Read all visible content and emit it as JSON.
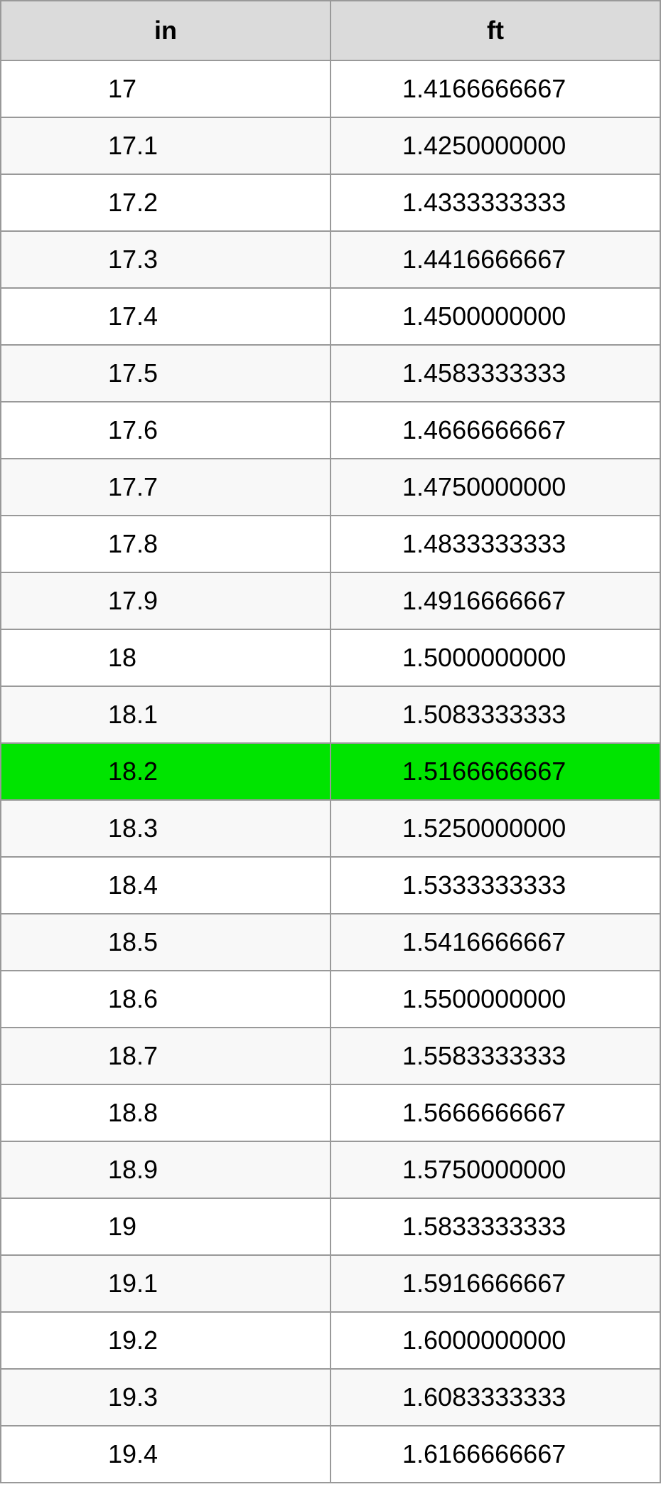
{
  "conversion_table": {
    "type": "table",
    "columns": [
      "in",
      "ft"
    ],
    "header_bg": "#dbdbdb",
    "border_color": "#999999",
    "odd_row_bg": "#ffffff",
    "even_row_bg": "#f8f8f8",
    "highlight_bg": "#00e400",
    "text_color": "#000000",
    "font_size": 36,
    "highlight_index": 12,
    "rows": [
      {
        "in": "17",
        "ft": "1.4166666667"
      },
      {
        "in": "17.1",
        "ft": "1.4250000000"
      },
      {
        "in": "17.2",
        "ft": "1.4333333333"
      },
      {
        "in": "17.3",
        "ft": "1.4416666667"
      },
      {
        "in": "17.4",
        "ft": "1.4500000000"
      },
      {
        "in": "17.5",
        "ft": "1.4583333333"
      },
      {
        "in": "17.6",
        "ft": "1.4666666667"
      },
      {
        "in": "17.7",
        "ft": "1.4750000000"
      },
      {
        "in": "17.8",
        "ft": "1.4833333333"
      },
      {
        "in": "17.9",
        "ft": "1.4916666667"
      },
      {
        "in": "18",
        "ft": "1.5000000000"
      },
      {
        "in": "18.1",
        "ft": "1.5083333333"
      },
      {
        "in": "18.2",
        "ft": "1.5166666667"
      },
      {
        "in": "18.3",
        "ft": "1.5250000000"
      },
      {
        "in": "18.4",
        "ft": "1.5333333333"
      },
      {
        "in": "18.5",
        "ft": "1.5416666667"
      },
      {
        "in": "18.6",
        "ft": "1.5500000000"
      },
      {
        "in": "18.7",
        "ft": "1.5583333333"
      },
      {
        "in": "18.8",
        "ft": "1.5666666667"
      },
      {
        "in": "18.9",
        "ft": "1.5750000000"
      },
      {
        "in": "19",
        "ft": "1.5833333333"
      },
      {
        "in": "19.1",
        "ft": "1.5916666667"
      },
      {
        "in": "19.2",
        "ft": "1.6000000000"
      },
      {
        "in": "19.3",
        "ft": "1.6083333333"
      },
      {
        "in": "19.4",
        "ft": "1.6166666667"
      }
    ]
  }
}
